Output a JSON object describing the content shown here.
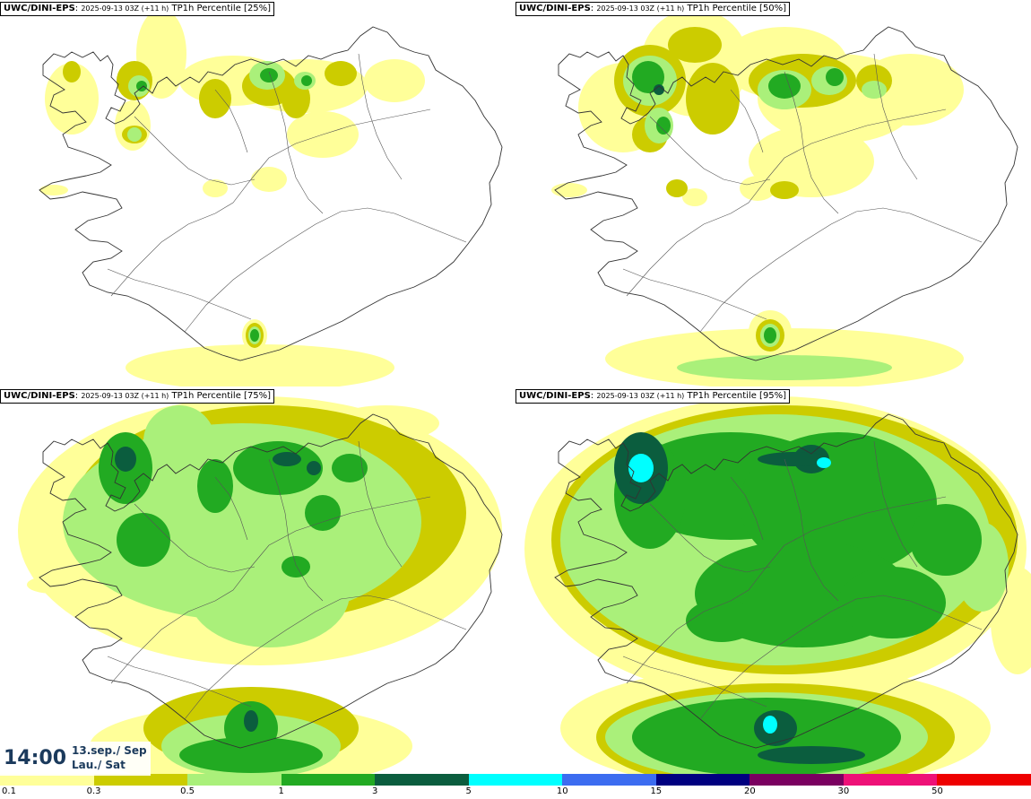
{
  "panels": [
    {
      "model": "UWC/DINI-EPS",
      "run": "2025-09-13 03Z (+11 h)",
      "product": "TP1h Percentile",
      "percentile": "[25%]"
    },
    {
      "model": "UWC/DINI-EPS",
      "run": "2025-09-13 03Z (+11 h)",
      "product": "TP1h Percentile",
      "percentile": "[50%]"
    },
    {
      "model": "UWC/DINI-EPS",
      "run": "2025-09-13 03Z (+11 h)",
      "product": "TP1h Percentile",
      "percentile": "[75%]"
    },
    {
      "model": "UWC/DINI-EPS",
      "run": "2025-09-13 03Z (+11 h)",
      "product": "TP1h Percentile",
      "percentile": "[95%]"
    }
  ],
  "valid_time": {
    "time": "14:00",
    "date_line1": "13.sep./ Sep",
    "date_line2": "Lau./ Sat"
  },
  "legend": {
    "colors": [
      "#ffff99",
      "#cccc00",
      "#aaf07a",
      "#22aa22",
      "#0b5d3e",
      "#00ffff",
      "#3c6cf0",
      "#000080",
      "#7a0060",
      "#ee1177",
      "#ee0000"
    ],
    "labels": [
      "0.1",
      "0.3",
      "0.5",
      "1",
      "3",
      "5",
      "10",
      "15",
      "20",
      "30",
      "50"
    ]
  },
  "map_style": {
    "land": "#ffffff",
    "outline": "#333333",
    "roads": "#555555"
  }
}
